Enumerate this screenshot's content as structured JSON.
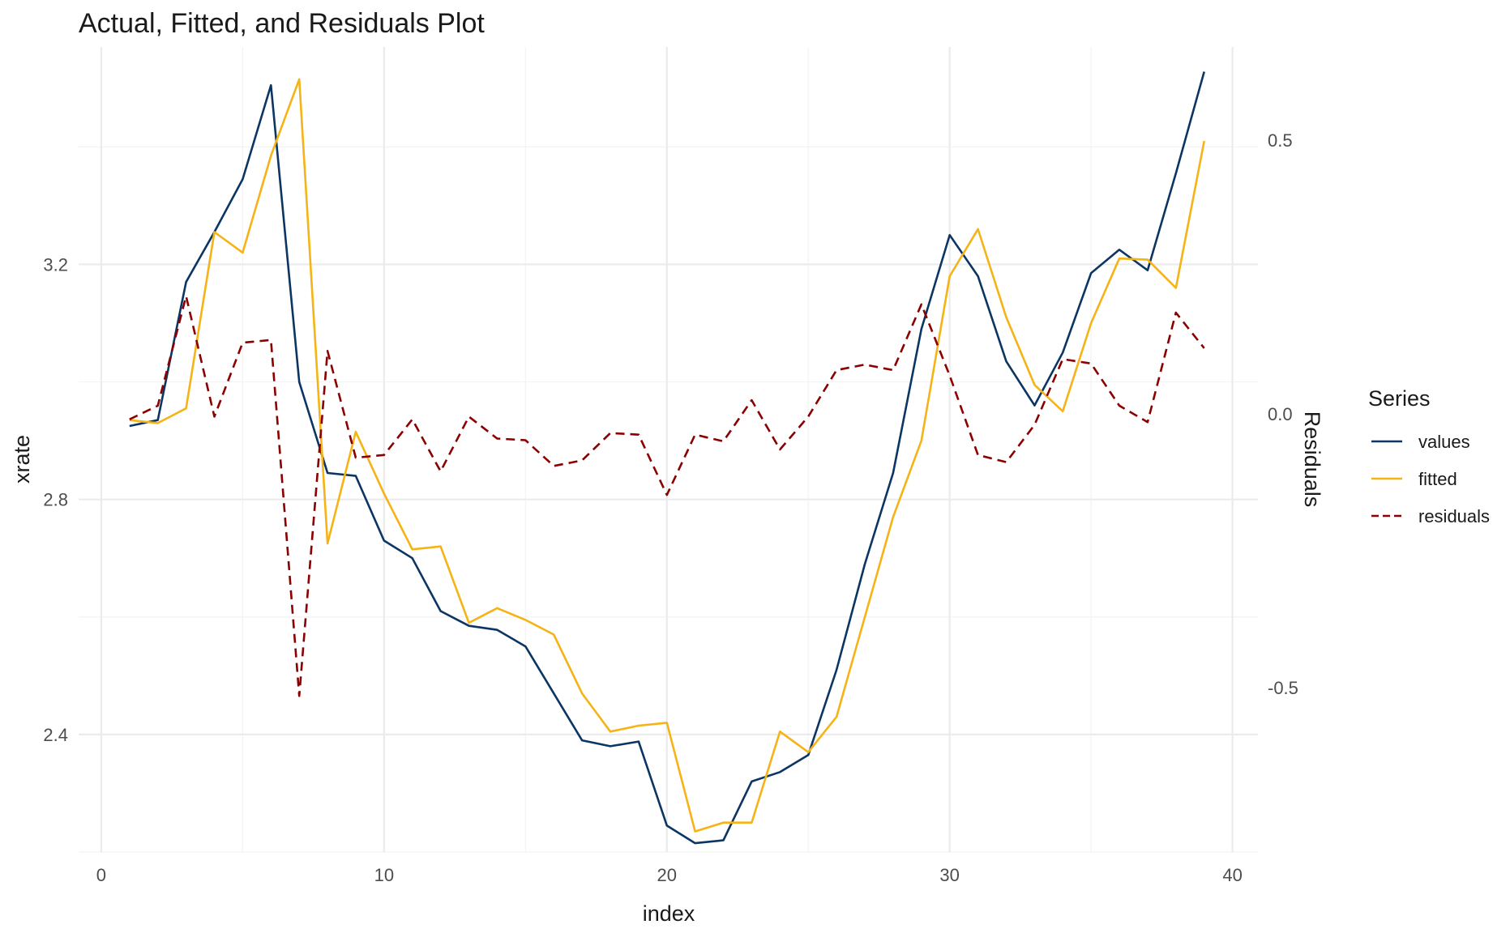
{
  "chart_data": {
    "type": "line",
    "title": "Actual, Fitted, and Residuals Plot",
    "xlabel": "index",
    "ylabel": "xrate",
    "y2label": "Residuals",
    "xlim": [
      -0.8,
      40.9
    ],
    "ylim": [
      2.2,
      3.57
    ],
    "y2lim": [
      -0.8,
      0.67
    ],
    "x_ticks": [
      0,
      10,
      20,
      30,
      40
    ],
    "y_ticks": [
      2.4,
      2.8,
      3.2
    ],
    "y2_ticks": [
      -0.5,
      0.0,
      0.5
    ],
    "y2_tick_labels": [
      "-0.5",
      "0.0",
      "0.5"
    ],
    "grid": true,
    "legend": {
      "title": "Series",
      "position": "right"
    },
    "x": [
      1,
      2,
      3,
      4,
      5,
      6,
      7,
      8,
      9,
      10,
      11,
      12,
      13,
      14,
      15,
      16,
      17,
      18,
      19,
      20,
      21,
      22,
      23,
      24,
      25,
      26,
      27,
      28,
      29,
      30,
      31,
      32,
      33,
      34,
      35,
      36,
      37,
      38,
      39
    ],
    "series": [
      {
        "name": "values",
        "axis": "left",
        "color": "#0b3563",
        "dash": "solid",
        "values": [
          2.925,
          2.935,
          3.17,
          3.255,
          3.345,
          3.505,
          3.0,
          2.845,
          2.84,
          2.73,
          2.7,
          2.61,
          2.585,
          2.578,
          2.55,
          2.47,
          2.39,
          2.38,
          2.388,
          2.245,
          2.215,
          2.22,
          2.32,
          2.336,
          2.365,
          2.51,
          2.69,
          2.845,
          3.09,
          3.25,
          3.18,
          3.035,
          2.96,
          3.05,
          3.185,
          3.225,
          3.19,
          3.355,
          3.528
        ]
      },
      {
        "name": "fitted",
        "axis": "left",
        "color": "#f5b316",
        "dash": "solid",
        "values": [
          2.935,
          2.93,
          2.955,
          3.255,
          3.22,
          3.385,
          3.515,
          2.725,
          2.915,
          2.81,
          2.715,
          2.72,
          2.59,
          2.615,
          2.595,
          2.57,
          2.47,
          2.405,
          2.415,
          2.42,
          2.235,
          2.25,
          2.25,
          2.405,
          2.37,
          2.43,
          2.6,
          2.77,
          2.9,
          3.18,
          3.26,
          3.11,
          2.995,
          2.95,
          3.1,
          3.21,
          3.208,
          3.16,
          3.41
        ]
      },
      {
        "name": "residuals",
        "axis": "right",
        "color": "#8b0000",
        "dash": "dashed",
        "values": [
          -0.01,
          0.015,
          0.215,
          -0.005,
          0.13,
          0.135,
          -0.515,
          0.115,
          -0.08,
          -0.075,
          -0.01,
          -0.105,
          -0.005,
          -0.045,
          -0.048,
          -0.095,
          -0.085,
          -0.035,
          -0.038,
          -0.148,
          -0.038,
          -0.05,
          0.025,
          -0.065,
          -0.005,
          0.08,
          0.09,
          0.08,
          0.2,
          0.07,
          -0.075,
          -0.088,
          -0.02,
          0.1,
          0.092,
          0.015,
          -0.015,
          0.185,
          0.12
        ]
      }
    ]
  }
}
